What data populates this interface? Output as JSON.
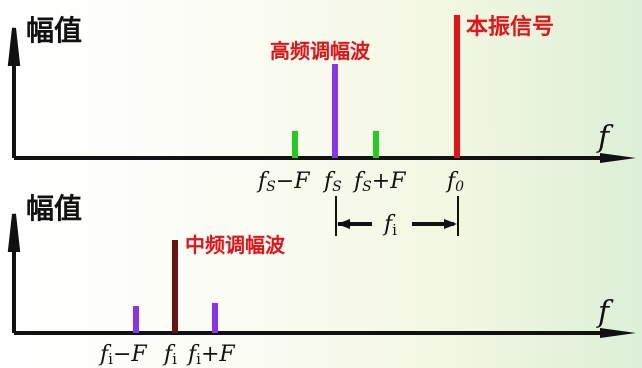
{
  "colors": {
    "axis": "#111111",
    "green": "#22cc22",
    "purple": "#8833ee",
    "red": "#e0141a",
    "dark_red": "#6a1212",
    "red_text": "#e0141a"
  },
  "top": {
    "y_label": "幅值",
    "x_label": "f",
    "title_label": "高频调幅波",
    "local_osc_label": "本振信号",
    "tick_fs_minus_F": {
      "f": "f",
      "s": "S",
      "op": "−",
      "F": "F"
    },
    "tick_fs": {
      "f": "f",
      "s": "S"
    },
    "tick_fs_plus_F": {
      "f": "f",
      "s": "S",
      "op": "+",
      "F": "F"
    },
    "tick_f0": {
      "f": "f",
      "sub": "0"
    },
    "measure": {
      "f": "f",
      "sub": "i"
    }
  },
  "bottom": {
    "y_label": "幅值",
    "x_label": "f",
    "title_label": "中频调幅波",
    "tick_fi_minus_F": {
      "f": "f",
      "sub": "i",
      "op": "−",
      "F": "F"
    },
    "tick_fi": {
      "f": "f",
      "sub": "i"
    },
    "tick_fi_plus_F": {
      "f": "f",
      "sub": "i",
      "op": "+",
      "F": "F"
    }
  }
}
